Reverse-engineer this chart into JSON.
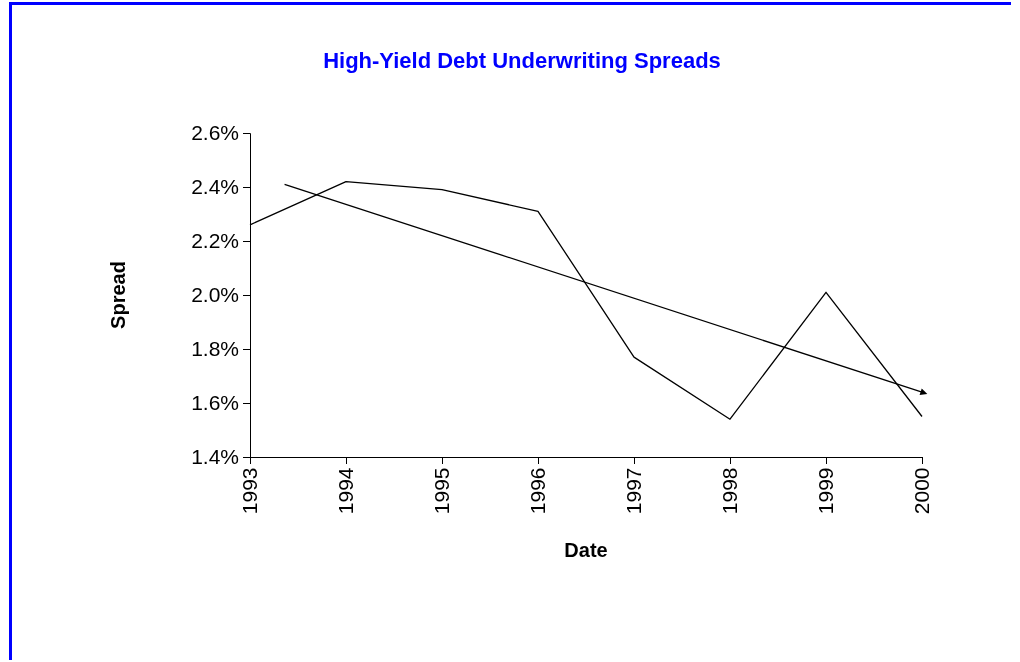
{
  "chart_data": {
    "type": "line",
    "title": "High-Yield Debt Underwriting Spreads",
    "xlabel": "Date",
    "ylabel": "Spread",
    "x": [
      1993,
      1994,
      1995,
      1996,
      1997,
      1998,
      1999,
      2000
    ],
    "series": [
      {
        "color": "#000000",
        "values": [
          2.26,
          2.42,
          2.39,
          2.31,
          1.77,
          1.54,
          2.01,
          1.55
        ]
      },
      {
        "type": "line",
        "x": [
          1993.36,
          2000
        ],
        "color": "#000000",
        "values": [
          2.41,
          1.64
        ]
      }
    ],
    "xlim": [
      1993,
      2000
    ],
    "xticks": [
      1993,
      1994,
      1995,
      1996,
      1997,
      1998,
      1999,
      2000
    ],
    "ylim": [
      1.4,
      2.6
    ],
    "yticks": [
      {
        "value": 1.4,
        "label": "1.4%"
      },
      {
        "value": 1.6,
        "label": "1.6%"
      },
      {
        "value": 1.8,
        "label": "1.8%"
      },
      {
        "value": 2.0,
        "label": "2.0%"
      },
      {
        "value": 2.2,
        "label": "2.2%"
      },
      {
        "value": 2.4,
        "label": "2.4%"
      },
      {
        "value": 2.6,
        "label": "2.6%"
      }
    ],
    "grid": false,
    "marker": "none",
    "line_style": "solid"
  }
}
